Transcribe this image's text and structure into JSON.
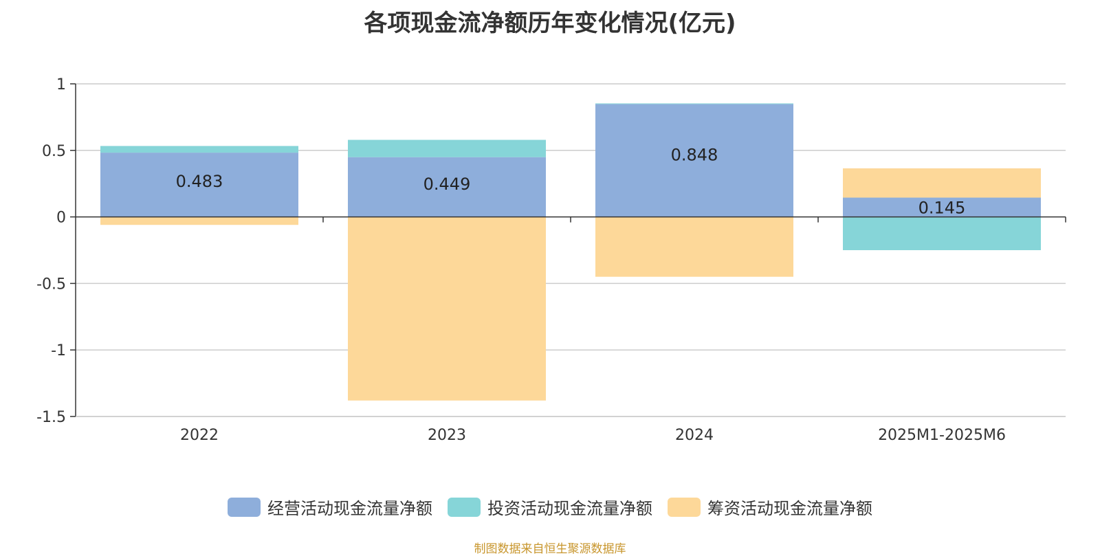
{
  "title": "各项现金流净额历年变化情况(亿元)",
  "source": "制图数据来自恒生聚源数据库",
  "chart_data": {
    "type": "bar",
    "stacked": true,
    "categories": [
      "2022",
      "2023",
      "2024",
      "2025M1-2025M6"
    ],
    "series": [
      {
        "name": "经营活动现金流量净额",
        "color": "#8eaedb",
        "values": [
          0.483,
          0.449,
          0.848,
          0.145
        ],
        "labels": [
          "0.483",
          "0.449",
          "0.848",
          "0.145"
        ]
      },
      {
        "name": "投资活动现金流量净额",
        "color": "#86d5d8",
        "values": [
          0.05,
          0.13,
          0.005,
          -0.25
        ]
      },
      {
        "name": "筹资活动现金流量净额",
        "color": "#fdd899",
        "values": [
          -0.06,
          -1.38,
          -0.45,
          0.22
        ]
      }
    ],
    "ylim": [
      -1.5,
      1
    ],
    "yticks": [
      1,
      0.5,
      0,
      -0.5,
      -1,
      -1.5
    ],
    "ytick_labels": [
      "1",
      "0.5",
      "0",
      "-0.5",
      "-1",
      "-1.5"
    ],
    "grid": true,
    "legend": "bottom"
  }
}
